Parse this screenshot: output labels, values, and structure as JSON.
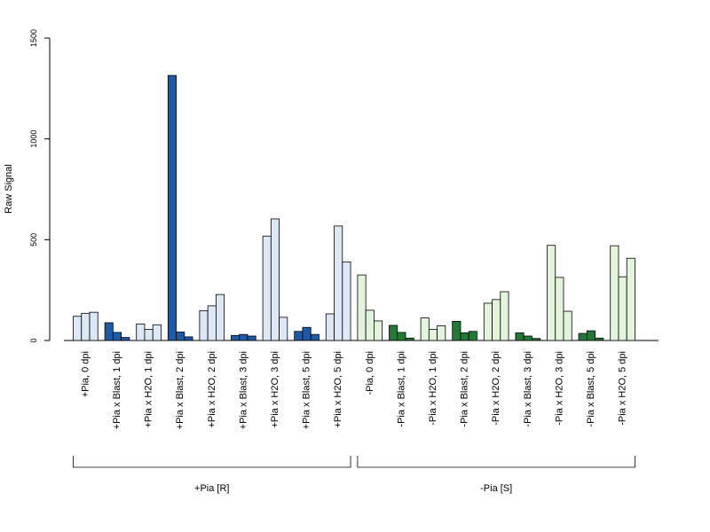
{
  "chart_data": {
    "type": "bar",
    "ylabel": "Raw Signal",
    "xlabel": "",
    "ylim": [
      0,
      1500
    ],
    "yticks": [
      0,
      500,
      1000,
      1500
    ],
    "groups": [
      {
        "name": "+Pia [R]",
        "categories": [
          {
            "label": "+Pia, 0 dpi",
            "values": [
              120,
              135,
              140
            ],
            "color": "#dce8f5"
          },
          {
            "label": "+Pia x Blast, 1 dpi",
            "values": [
              88,
              40,
              15
            ],
            "color": "#1f5aa6"
          },
          {
            "label": "+Pia x H2O, 1 dpi",
            "values": [
              82,
              55,
              78
            ],
            "color": "#dce8f5"
          },
          {
            "label": "+Pia x Blast, 2 dpi",
            "values": [
              1315,
              42,
              18
            ],
            "color": "#1f5aa6"
          },
          {
            "label": "+Pia x H2O, 2 dpi",
            "values": [
              148,
              172,
              228
            ],
            "color": "#dce8f5"
          },
          {
            "label": "+Pia x Blast, 3 dpi",
            "values": [
              25,
              30,
              22
            ],
            "color": "#1f5aa6"
          },
          {
            "label": "+Pia x H2O, 3 dpi",
            "values": [
              518,
              603,
              115
            ],
            "color": "#dce8f5"
          },
          {
            "label": "+Pia x Blast, 5 dpi",
            "values": [
              45,
              65,
              30
            ],
            "color": "#1f5aa6"
          },
          {
            "label": "+Pia x H2O, 5 dpi",
            "values": [
              132,
              568,
              390
            ],
            "color": "#dce8f5"
          }
        ]
      },
      {
        "name": "-Pia [S]",
        "categories": [
          {
            "label": "-Pia, 0 dpi",
            "values": [
              325,
              150,
              97
            ],
            "color": "#e2f5dc"
          },
          {
            "label": "-Pia x Blast, 1 dpi",
            "values": [
              75,
              40,
              12
            ],
            "color": "#237a37"
          },
          {
            "label": "-Pia x H2O, 1 dpi",
            "values": [
              112,
              55,
              73
            ],
            "color": "#e2f5dc"
          },
          {
            "label": "-Pia x Blast, 2 dpi",
            "values": [
              95,
              38,
              45
            ],
            "color": "#237a37"
          },
          {
            "label": "-Pia x H2O, 2 dpi",
            "values": [
              185,
              203,
              242
            ],
            "color": "#e2f5dc"
          },
          {
            "label": "-Pia x Blast, 3 dpi",
            "values": [
              38,
              22,
              10
            ],
            "color": "#237a37"
          },
          {
            "label": "-Pia x H2O, 3 dpi",
            "values": [
              472,
              313,
              145
            ],
            "color": "#e2f5dc"
          },
          {
            "label": "-Pia x Blast, 5 dpi",
            "values": [
              35,
              48,
              12
            ],
            "color": "#237a37"
          },
          {
            "label": "-Pia x H2O, 5 dpi",
            "values": [
              470,
              316,
              408
            ],
            "color": "#e2f5dc"
          }
        ]
      }
    ],
    "grid": false,
    "legend": "none"
  }
}
